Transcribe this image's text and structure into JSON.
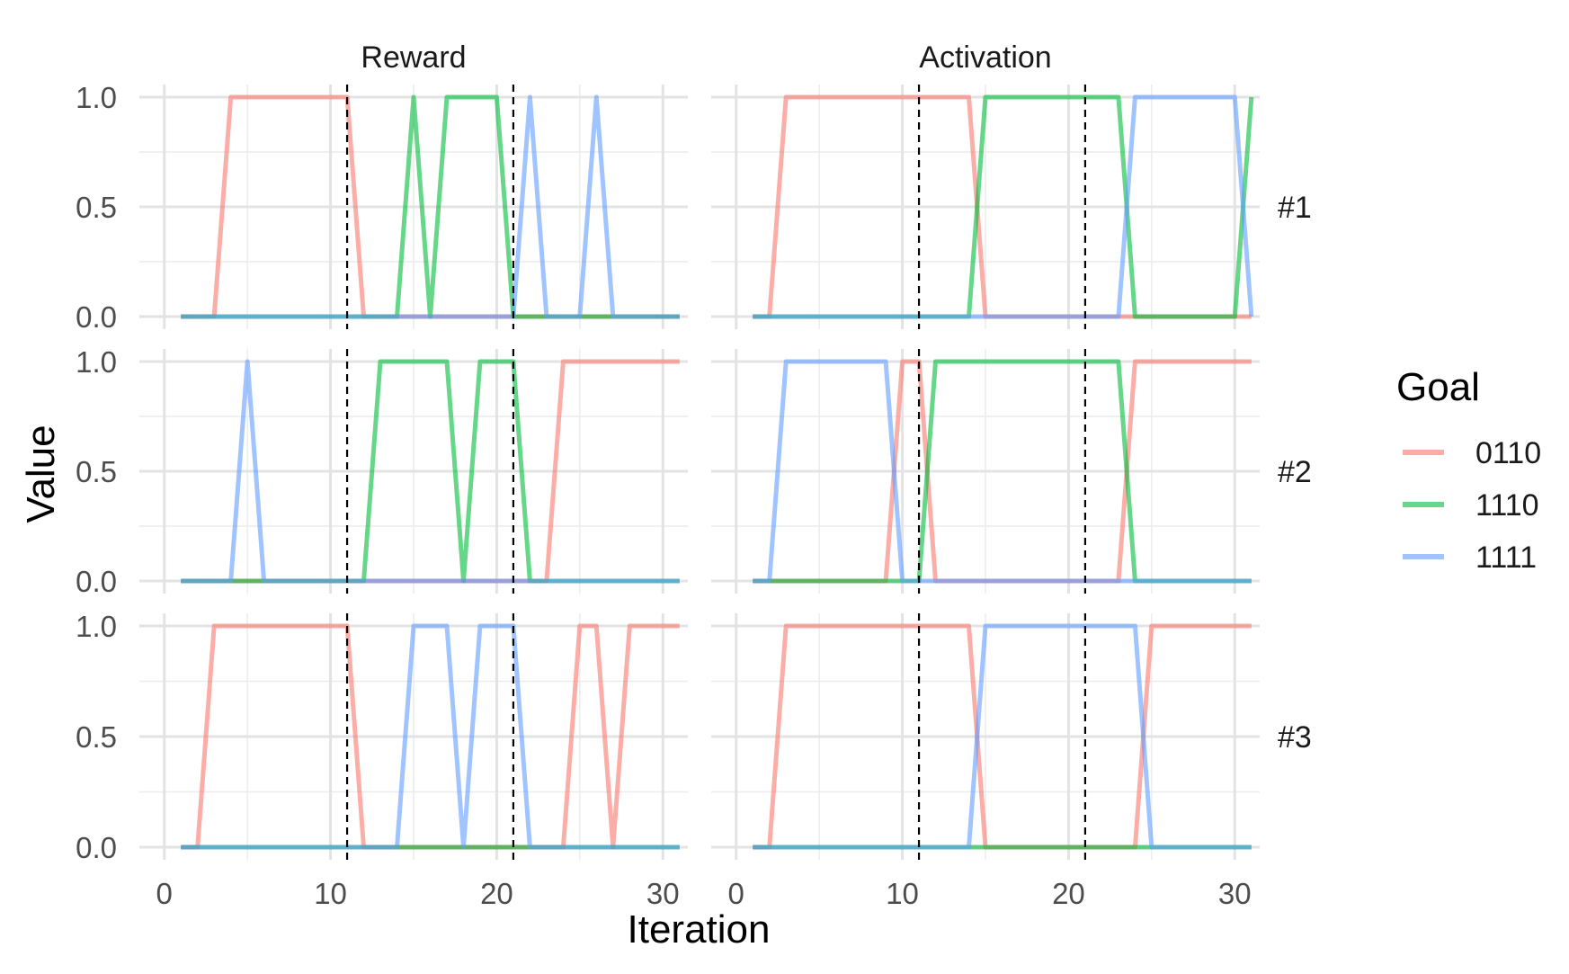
{
  "chart_data": {
    "type": "line",
    "title": "",
    "xlabel": "Iteration",
    "ylabel": "Value",
    "xlim": [
      0,
      30
    ],
    "ylim": [
      0,
      1
    ],
    "x_ticks": [
      "0",
      "10",
      "20",
      "30"
    ],
    "y_ticks": [
      "0.0",
      "0.5",
      "1.0"
    ],
    "grid": true,
    "legend_position": "right",
    "legend": {
      "title": "Goal",
      "entries": [
        {
          "name": "0110",
          "color": "#F8766D"
        },
        {
          "name": "1110",
          "color": "#00BA38"
        },
        {
          "name": "1111",
          "color": "#619CFF"
        }
      ]
    },
    "column_labels": [
      "Reward",
      "Activation"
    ],
    "row_labels": [
      "#1",
      "#2",
      "#3"
    ],
    "vlines": [
      11,
      21
    ],
    "x": [
      1,
      2,
      3,
      4,
      5,
      6,
      7,
      8,
      9,
      10,
      11,
      12,
      13,
      14,
      15,
      16,
      17,
      18,
      19,
      20,
      21,
      22,
      23,
      24,
      25,
      26,
      27,
      28,
      29,
      30,
      31
    ],
    "panels": [
      {
        "row": "#1",
        "column": "Reward",
        "series": [
          {
            "name": "0110",
            "values": [
              0,
              0,
              0,
              1,
              1,
              1,
              1,
              1,
              1,
              1,
              1,
              0,
              0,
              0,
              0,
              0,
              0,
              0,
              0,
              0,
              0,
              0,
              0,
              0,
              0,
              0,
              0,
              0,
              0,
              0,
              0
            ]
          },
          {
            "name": "1110",
            "values": [
              0,
              0,
              0,
              0,
              0,
              0,
              0,
              0,
              0,
              0,
              0,
              0,
              0,
              0,
              1,
              0,
              1,
              1,
              1,
              1,
              0,
              0,
              0,
              0,
              0,
              0,
              0,
              0,
              0,
              0,
              0
            ]
          },
          {
            "name": "1111",
            "values": [
              0,
              0,
              0,
              0,
              0,
              0,
              0,
              0,
              0,
              0,
              0,
              0,
              0,
              0,
              0,
              0,
              0,
              0,
              0,
              0,
              0,
              1,
              0,
              0,
              0,
              1,
              0,
              0,
              0,
              0,
              0
            ]
          }
        ]
      },
      {
        "row": "#1",
        "column": "Activation",
        "series": [
          {
            "name": "0110",
            "values": [
              0,
              0,
              1,
              1,
              1,
              1,
              1,
              1,
              1,
              1,
              1,
              1,
              1,
              1,
              0,
              0,
              0,
              0,
              0,
              0,
              0,
              0,
              0,
              0,
              0,
              0,
              0,
              0,
              0,
              0,
              0
            ]
          },
          {
            "name": "1110",
            "values": [
              0,
              0,
              0,
              0,
              0,
              0,
              0,
              0,
              0,
              0,
              0,
              0,
              0,
              0,
              1,
              1,
              1,
              1,
              1,
              1,
              1,
              1,
              1,
              0,
              0,
              0,
              0,
              0,
              0,
              0,
              1
            ]
          },
          {
            "name": "1111",
            "values": [
              0,
              0,
              0,
              0,
              0,
              0,
              0,
              0,
              0,
              0,
              0,
              0,
              0,
              0,
              0,
              0,
              0,
              0,
              0,
              0,
              0,
              0,
              0,
              1,
              1,
              1,
              1,
              1,
              1,
              1,
              0
            ]
          }
        ]
      },
      {
        "row": "#2",
        "column": "Reward",
        "series": [
          {
            "name": "0110",
            "values": [
              0,
              0,
              0,
              0,
              0,
              0,
              0,
              0,
              0,
              0,
              0,
              0,
              0,
              0,
              0,
              0,
              0,
              0,
              0,
              0,
              0,
              0,
              0,
              1,
              1,
              1,
              1,
              1,
              1,
              1,
              1
            ]
          },
          {
            "name": "1110",
            "values": [
              0,
              0,
              0,
              0,
              0,
              0,
              0,
              0,
              0,
              0,
              0,
              0,
              1,
              1,
              1,
              1,
              1,
              0,
              1,
              1,
              1,
              0,
              0,
              0,
              0,
              0,
              0,
              0,
              0,
              0,
              0
            ]
          },
          {
            "name": "1111",
            "values": [
              0,
              0,
              0,
              0,
              1,
              0,
              0,
              0,
              0,
              0,
              0,
              0,
              0,
              0,
              0,
              0,
              0,
              0,
              0,
              0,
              0,
              0,
              0,
              0,
              0,
              0,
              0,
              0,
              0,
              0,
              0
            ]
          }
        ]
      },
      {
        "row": "#2",
        "column": "Activation",
        "series": [
          {
            "name": "0110",
            "values": [
              0,
              0,
              0,
              0,
              0,
              0,
              0,
              0,
              0,
              1,
              1,
              0,
              0,
              0,
              0,
              0,
              0,
              0,
              0,
              0,
              0,
              0,
              0,
              1,
              1,
              1,
              1,
              1,
              1,
              1,
              1
            ]
          },
          {
            "name": "1110",
            "values": [
              0,
              0,
              0,
              0,
              0,
              0,
              0,
              0,
              0,
              0,
              0,
              1,
              1,
              1,
              1,
              1,
              1,
              1,
              1,
              1,
              1,
              1,
              1,
              0,
              0,
              0,
              0,
              0,
              0,
              0,
              0
            ]
          },
          {
            "name": "1111",
            "values": [
              0,
              0,
              1,
              1,
              1,
              1,
              1,
              1,
              1,
              0,
              0,
              0,
              0,
              0,
              0,
              0,
              0,
              0,
              0,
              0,
              0,
              0,
              0,
              0,
              0,
              0,
              0,
              0,
              0,
              0,
              0
            ]
          }
        ]
      },
      {
        "row": "#3",
        "column": "Reward",
        "series": [
          {
            "name": "0110",
            "values": [
              0,
              0,
              1,
              1,
              1,
              1,
              1,
              1,
              1,
              1,
              1,
              0,
              0,
              0,
              0,
              0,
              0,
              0,
              0,
              0,
              0,
              0,
              0,
              0,
              1,
              1,
              0,
              1,
              1,
              1,
              1
            ]
          },
          {
            "name": "1110",
            "values": [
              0,
              0,
              0,
              0,
              0,
              0,
              0,
              0,
              0,
              0,
              0,
              0,
              0,
              0,
              0,
              0,
              0,
              0,
              0,
              0,
              0,
              0,
              0,
              0,
              0,
              0,
              0,
              0,
              0,
              0,
              0
            ]
          },
          {
            "name": "1111",
            "values": [
              0,
              0,
              0,
              0,
              0,
              0,
              0,
              0,
              0,
              0,
              0,
              0,
              0,
              0,
              1,
              1,
              1,
              0,
              1,
              1,
              1,
              0,
              0,
              0,
              0,
              0,
              0,
              0,
              0,
              0,
              0
            ]
          }
        ]
      },
      {
        "row": "#3",
        "column": "Activation",
        "series": [
          {
            "name": "0110",
            "values": [
              0,
              0,
              1,
              1,
              1,
              1,
              1,
              1,
              1,
              1,
              1,
              1,
              1,
              1,
              0,
              0,
              0,
              0,
              0,
              0,
              0,
              0,
              0,
              0,
              1,
              1,
              1,
              1,
              1,
              1,
              1
            ]
          },
          {
            "name": "1110",
            "values": [
              0,
              0,
              0,
              0,
              0,
              0,
              0,
              0,
              0,
              0,
              0,
              0,
              0,
              0,
              0,
              0,
              0,
              0,
              0,
              0,
              0,
              0,
              0,
              0,
              0,
              0,
              0,
              0,
              0,
              0,
              0
            ]
          },
          {
            "name": "1111",
            "values": [
              0,
              0,
              0,
              0,
              0,
              0,
              0,
              0,
              0,
              0,
              0,
              0,
              0,
              0,
              1,
              1,
              1,
              1,
              1,
              1,
              1,
              1,
              1,
              1,
              0,
              0,
              0,
              0,
              0,
              0,
              0
            ]
          }
        ]
      }
    ]
  }
}
